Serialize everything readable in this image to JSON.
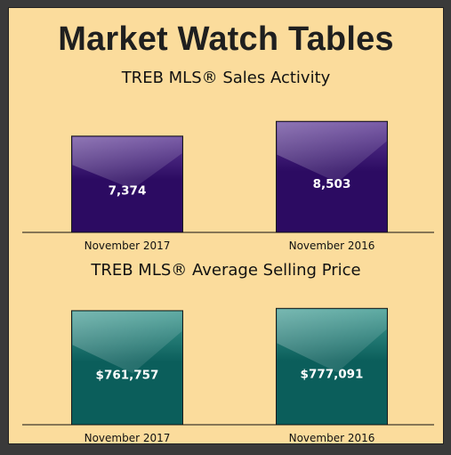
{
  "page": {
    "title": "Market Watch Tables"
  },
  "colors": {
    "background": "#fbdc9c",
    "sales_bar_top": "#5f3c95",
    "sales_bar_bottom": "#2c0b62",
    "price_bar_top": "#3f9a91",
    "price_bar_bottom": "#0b5e5b"
  },
  "chart_data": [
    {
      "type": "bar",
      "title": "TREB MLS® Sales Activity",
      "categories": [
        "November 2017",
        "November 2016"
      ],
      "values": [
        7374,
        8503
      ],
      "value_labels": [
        "7,374",
        "8,503"
      ],
      "ylim": [
        0,
        9000
      ],
      "grid": false,
      "legend": "none"
    },
    {
      "type": "bar",
      "title": "TREB MLS® Average Selling Price",
      "categories": [
        "November 2017",
        "November 2016"
      ],
      "values": [
        761757,
        777091
      ],
      "value_labels": [
        "$761,757",
        "$777,091"
      ],
      "ylim": [
        0,
        785000
      ],
      "grid": false,
      "legend": "none"
    }
  ]
}
